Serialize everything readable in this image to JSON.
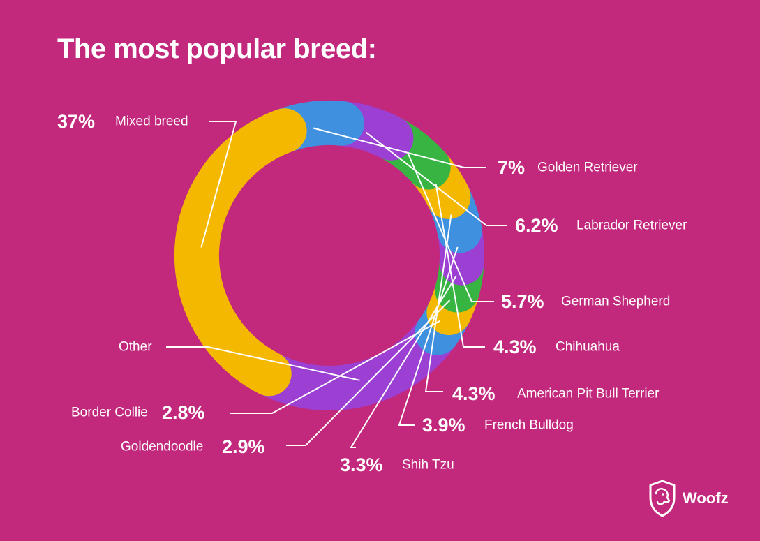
{
  "page": {
    "title": "The most popular breed:"
  },
  "brand": {
    "name": "Woofz"
  },
  "colors": {
    "background": "#C2297D",
    "yellow": "#F5B800",
    "blue": "#3F90DE",
    "purple": "#9C3FD3",
    "green": "#37B441",
    "text": "#FFFFFF"
  },
  "chart_data": {
    "type": "pie",
    "style": "donut",
    "title": "The most popular breed:",
    "slices": [
      {
        "name": "Mixed breed",
        "value": 37,
        "value_label": "37%",
        "color": "yellow"
      },
      {
        "name": "Golden Retriever",
        "value": 7,
        "value_label": "7%",
        "color": "blue"
      },
      {
        "name": "Labrador Retriever",
        "value": 6.2,
        "value_label": "6.2%",
        "color": "purple"
      },
      {
        "name": "German Shepherd",
        "value": 5.7,
        "value_label": "5.7%",
        "color": "green"
      },
      {
        "name": "Chihuahua",
        "value": 4.3,
        "value_label": "4.3%",
        "color": "yellow"
      },
      {
        "name": "American Pit Bull Terrier",
        "value": 4.3,
        "value_label": "4.3%",
        "color": "blue"
      },
      {
        "name": "French Bulldog",
        "value": 3.9,
        "value_label": "3.9%",
        "color": "purple"
      },
      {
        "name": "Shih Tzu",
        "value": 3.3,
        "value_label": "3.3%",
        "color": "green"
      },
      {
        "name": "Goldendoodle",
        "value": 2.9,
        "value_label": "2.9%",
        "color": "yellow"
      },
      {
        "name": "Border Collie",
        "value": 2.8,
        "value_label": "2.8%",
        "color": "blue"
      },
      {
        "name": "Other",
        "value": 22.6,
        "value_label": "",
        "color": "purple"
      }
    ]
  }
}
